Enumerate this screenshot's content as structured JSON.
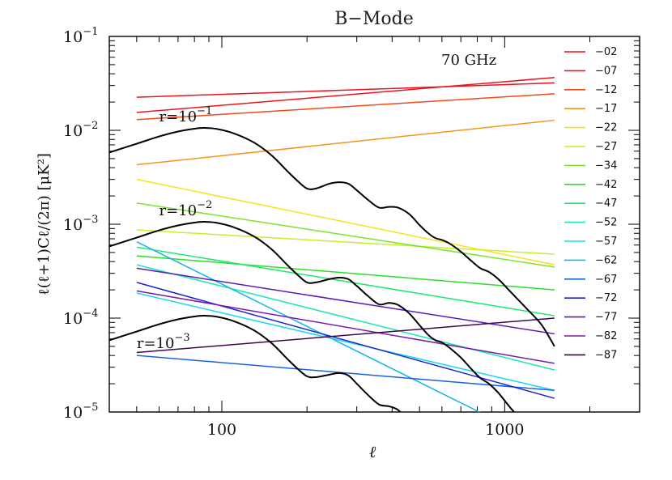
{
  "chart_data": {
    "type": "line",
    "title": "B−Mode",
    "xlabel": "ℓ",
    "ylabel": "ℓ(ℓ+1)Cℓ/(2π)  [μK²]",
    "xscale": "log",
    "yscale": "log",
    "xlim": [
      40,
      3000
    ],
    "ylim": [
      1e-05,
      0.1
    ],
    "x_ticks": [
      {
        "value": 100,
        "label": "100"
      },
      {
        "value": 1000,
        "label": "1000"
      }
    ],
    "y_ticks": [
      {
        "value": 0.1,
        "base": "10",
        "exp": "−1"
      },
      {
        "value": 0.01,
        "base": "10",
        "exp": "−2"
      },
      {
        "value": 0.001,
        "base": "10",
        "exp": "−3"
      },
      {
        "value": 0.0001,
        "base": "10",
        "exp": "−4"
      },
      {
        "value": 1e-05,
        "base": "10",
        "exp": "−5"
      }
    ],
    "grid": false,
    "legend": "right",
    "annotation": "70 GHz",
    "foreground_series": [
      {
        "label": "−02",
        "color": "#e8141e",
        "values": [
          [
            50,
            0.0225
          ],
          [
            1500,
            0.032
          ]
        ]
      },
      {
        "label": "−07",
        "color": "#e8141e",
        "values": [
          [
            50,
            0.0155
          ],
          [
            1500,
            0.0365
          ]
        ]
      },
      {
        "label": "−12",
        "color": "#ee4a16",
        "values": [
          [
            50,
            0.013
          ],
          [
            1500,
            0.0245
          ]
        ]
      },
      {
        "label": "−17",
        "color": "#f5931a",
        "values": [
          [
            50,
            0.0043
          ],
          [
            1500,
            0.0128
          ]
        ]
      },
      {
        "label": "−22",
        "color": "#f2e41c",
        "values": [
          [
            50,
            0.003
          ],
          [
            1500,
            0.00037
          ]
        ]
      },
      {
        "label": "−27",
        "color": "#c9ef2a",
        "values": [
          [
            50,
            0.00087
          ],
          [
            1500,
            0.00048
          ]
        ]
      },
      {
        "label": "−34",
        "color": "#7fe22a",
        "values": [
          [
            50,
            0.00168
          ],
          [
            1500,
            0.00035
          ]
        ]
      },
      {
        "label": "−42",
        "color": "#2ddf2d",
        "values": [
          [
            50,
            0.00046
          ],
          [
            1500,
            0.0002
          ]
        ]
      },
      {
        "label": "−47",
        "color": "#1ee86c",
        "values": [
          [
            50,
            0.00057
          ],
          [
            1500,
            0.000106
          ]
        ]
      },
      {
        "label": "−52",
        "color": "#1ee8b8",
        "values": [
          [
            50,
            0.00037
          ],
          [
            1500,
            2.8e-05
          ]
        ]
      },
      {
        "label": "−57",
        "color": "#1ad8e8",
        "values": [
          [
            50,
            0.000185
          ],
          [
            1500,
            1.7e-05
          ]
        ]
      },
      {
        "label": "−62",
        "color": "#1ab4ec",
        "values": [
          [
            50,
            0.00065
          ],
          [
            1500,
            4e-06
          ]
        ]
      },
      {
        "label": "−67",
        "color": "#1a64e0",
        "values": [
          [
            50,
            4e-05
          ],
          [
            1500,
            1.7e-05
          ]
        ]
      },
      {
        "label": "−72",
        "color": "#1a26c8",
        "values": [
          [
            50,
            0.00024
          ],
          [
            1500,
            1.4e-05
          ]
        ]
      },
      {
        "label": "−77",
        "color": "#5a1ab8",
        "values": [
          [
            50,
            0.00034
          ],
          [
            1500,
            6.8e-05
          ]
        ]
      },
      {
        "label": "−82",
        "color": "#7a1ab0",
        "values": [
          [
            50,
            0.000195
          ],
          [
            1500,
            3.3e-05
          ]
        ]
      },
      {
        "label": "−87",
        "color": "#3c0a46",
        "values": [
          [
            50,
            4.3e-05
          ],
          [
            1500,
            0.0001
          ]
        ]
      }
    ],
    "cmb_series": [
      {
        "r_base": "r=10",
        "r_exp": "−1",
        "label_at": [
          60,
          0.0125
        ],
        "values": [
          [
            40,
            0.0058
          ],
          [
            50,
            0.0072
          ],
          [
            60,
            0.0086
          ],
          [
            70,
            0.0097
          ],
          [
            80,
            0.0104
          ],
          [
            86,
            0.0106
          ],
          [
            95,
            0.0104
          ],
          [
            110,
            0.0093
          ],
          [
            130,
            0.0074
          ],
          [
            150,
            0.0054
          ],
          [
            170,
            0.0037
          ],
          [
            185,
            0.0029
          ],
          [
            200,
            0.0024
          ],
          [
            215,
            0.0024
          ],
          [
            240,
            0.0027
          ],
          [
            260,
            0.0028
          ],
          [
            280,
            0.0027
          ],
          [
            300,
            0.0023
          ],
          [
            330,
            0.0018
          ],
          [
            360,
            0.0015
          ],
          [
            390,
            0.00153
          ],
          [
            420,
            0.0015
          ],
          [
            460,
            0.00128
          ],
          [
            500,
            0.00098
          ],
          [
            540,
            0.00079
          ],
          [
            570,
            0.00071
          ],
          [
            600,
            0.00068
          ],
          [
            640,
            0.00062
          ],
          [
            700,
            0.00051
          ],
          [
            760,
            0.00041
          ],
          [
            820,
            0.00034
          ],
          [
            880,
            0.00031
          ],
          [
            950,
            0.00026
          ],
          [
            1050,
            0.00019
          ],
          [
            1200,
            0.000125
          ],
          [
            1350,
            8.5e-05
          ],
          [
            1500,
            5e-05
          ]
        ]
      },
      {
        "r_base": "r=10",
        "r_exp": "−2",
        "label_at": [
          60,
          0.00125
        ],
        "values": [
          [
            40,
            0.00058
          ],
          [
            50,
            0.00072
          ],
          [
            60,
            0.00086
          ],
          [
            70,
            0.00097
          ],
          [
            80,
            0.00104
          ],
          [
            86,
            0.00106
          ],
          [
            95,
            0.00104
          ],
          [
            110,
            0.00093
          ],
          [
            130,
            0.00074
          ],
          [
            150,
            0.00054
          ],
          [
            170,
            0.00037
          ],
          [
            185,
            0.00029
          ],
          [
            200,
            0.00024
          ],
          [
            215,
            0.00024
          ],
          [
            240,
            0.00026
          ],
          [
            260,
            0.00027
          ],
          [
            280,
            0.00026
          ],
          [
            300,
            0.00022
          ],
          [
            330,
            0.00017
          ],
          [
            360,
            0.00014
          ],
          [
            390,
            0.000145
          ],
          [
            420,
            0.000138
          ],
          [
            460,
            0.000112
          ],
          [
            500,
            8.4e-05
          ],
          [
            540,
            6.5e-05
          ],
          [
            570,
            5.8e-05
          ],
          [
            600,
            5.5e-05
          ],
          [
            640,
            4.8e-05
          ],
          [
            700,
            3.8e-05
          ],
          [
            760,
            2.9e-05
          ],
          [
            820,
            2.3e-05
          ],
          [
            880,
            2e-05
          ],
          [
            950,
            1.6e-05
          ],
          [
            1050,
            1.1e-05
          ],
          [
            1200,
            7e-06
          ]
        ]
      },
      {
        "r_base": "r=10",
        "r_exp": "−3",
        "label_at": [
          50,
          4.8e-05
        ],
        "values": [
          [
            40,
            5.8e-05
          ],
          [
            50,
            7.2e-05
          ],
          [
            60,
            8.6e-05
          ],
          [
            70,
            9.7e-05
          ],
          [
            80,
            0.000104
          ],
          [
            86,
            0.000106
          ],
          [
            95,
            0.000104
          ],
          [
            110,
            9.3e-05
          ],
          [
            130,
            7.4e-05
          ],
          [
            150,
            5.4e-05
          ],
          [
            170,
            3.7e-05
          ],
          [
            185,
            2.9e-05
          ],
          [
            200,
            2.4e-05
          ],
          [
            215,
            2.35e-05
          ],
          [
            240,
            2.5e-05
          ],
          [
            260,
            2.6e-05
          ],
          [
            280,
            2.45e-05
          ],
          [
            300,
            2e-05
          ],
          [
            330,
            1.5e-05
          ],
          [
            360,
            1.2e-05
          ],
          [
            390,
            1.15e-05
          ],
          [
            420,
            1.05e-05
          ],
          [
            460,
            8e-06
          ]
        ]
      }
    ]
  }
}
